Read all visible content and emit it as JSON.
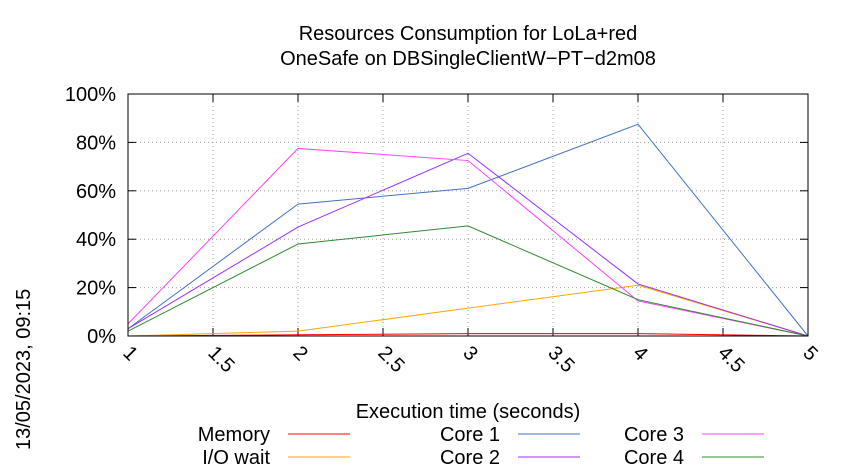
{
  "chart_data": {
    "type": "line",
    "title": "Resources Consumption for LoLa+red",
    "subtitle": "OneSafe on DBSingleClientW−PT−d2m08",
    "xlabel": "Execution time (seconds)",
    "ylabel": "",
    "side_label": "13/05/2023, 09:15",
    "xlim": [
      1,
      5
    ],
    "ylim": [
      0,
      100
    ],
    "x_ticks": [
      "1",
      "1.5",
      "2",
      "2.5",
      "3",
      "3.5",
      "4",
      "4.5",
      "5"
    ],
    "y_ticks": [
      "0%",
      "20%",
      "40%",
      "60%",
      "80%",
      "100%"
    ],
    "grid": true,
    "legend_position": "bottom",
    "x": [
      1,
      2,
      3,
      4,
      5
    ],
    "series": [
      {
        "name": "Memory",
        "color": "#ff0000",
        "values": [
          0,
          0.5,
          1,
          1,
          0
        ]
      },
      {
        "name": "I/O wait",
        "color": "#ffa500",
        "values": [
          0,
          2,
          11.5,
          21,
          0
        ]
      },
      {
        "name": "Core 1",
        "color": "#4472c4",
        "values": [
          3,
          54.5,
          61,
          87.5,
          0
        ]
      },
      {
        "name": "Core 2",
        "color": "#9b30ff",
        "values": [
          3,
          45,
          75.5,
          21.5,
          0
        ]
      },
      {
        "name": "Core 3",
        "color": "#ff40ff",
        "values": [
          5,
          77.5,
          72.5,
          14.5,
          0
        ]
      },
      {
        "name": "Core 4",
        "color": "#2e8b2e",
        "values": [
          2,
          38,
          45.5,
          15,
          0
        ]
      }
    ]
  }
}
